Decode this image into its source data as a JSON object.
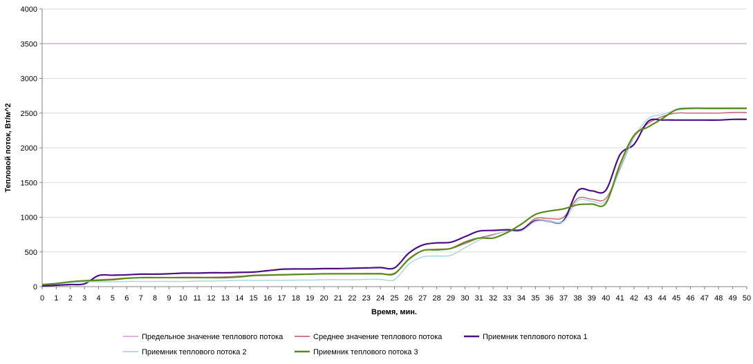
{
  "chart_data": {
    "type": "line",
    "title": "",
    "xlabel": "Время, мин.",
    "ylabel": "Тепловой поток, Вт/м^2",
    "xlim": [
      0,
      50
    ],
    "ylim": [
      0,
      4000
    ],
    "xticks": [
      "0",
      "1",
      "2",
      "3",
      "4",
      "5",
      "6",
      "7",
      "8",
      "9",
      "10",
      "11",
      "12",
      "13",
      "14",
      "15",
      "16",
      "17",
      "18",
      "19",
      "20",
      "21",
      "22",
      "23",
      "24",
      "25",
      "26",
      "27",
      "28",
      "29",
      "30",
      "31",
      "32",
      "33",
      "34",
      "35",
      "36",
      "37",
      "38",
      "39",
      "40",
      "41",
      "42",
      "43",
      "44",
      "45",
      "46",
      "47",
      "48",
      "49",
      "50"
    ],
    "yticks": [
      "0",
      "500",
      "1000",
      "1500",
      "2000",
      "2500",
      "3000",
      "3500",
      "4000"
    ],
    "grid": "horizontal",
    "legend_position": "bottom",
    "x": [
      0,
      1,
      2,
      3,
      4,
      5,
      6,
      7,
      8,
      9,
      10,
      11,
      12,
      13,
      14,
      15,
      16,
      17,
      18,
      19,
      20,
      21,
      22,
      23,
      24,
      25,
      26,
      27,
      28,
      29,
      30,
      31,
      32,
      33,
      34,
      35,
      36,
      37,
      38,
      39,
      40,
      41,
      42,
      43,
      44,
      45,
      46,
      47,
      48,
      49,
      50
    ],
    "series": [
      {
        "name": "Предельное значение теплового потока",
        "color": "#d6a8d6",
        "values": [
          3500,
          3500,
          3500,
          3500,
          3500,
          3500,
          3500,
          3500,
          3500,
          3500,
          3500,
          3500,
          3500,
          3500,
          3500,
          3500,
          3500,
          3500,
          3500,
          3500,
          3500,
          3500,
          3500,
          3500,
          3500,
          3500,
          3500,
          3500,
          3500,
          3500,
          3500,
          3500,
          3500,
          3500,
          3500,
          3500,
          3500,
          3500,
          3500,
          3500,
          3500,
          3500,
          3500,
          3500,
          3500,
          3500,
          3500,
          3500,
          3500,
          3500,
          3500
        ]
      },
      {
        "name": "Среднее значение теплового потока",
        "color": "#c8687e",
        "values": [
          30,
          40,
          65,
          85,
          100,
          110,
          125,
          130,
          130,
          130,
          135,
          135,
          135,
          140,
          150,
          165,
          170,
          175,
          180,
          180,
          185,
          185,
          185,
          190,
          190,
          180,
          400,
          520,
          540,
          550,
          620,
          700,
          750,
          800,
          820,
          980,
          980,
          1000,
          1270,
          1260,
          1270,
          1700,
          2150,
          2350,
          2450,
          2500,
          2500,
          2500,
          2500,
          2510,
          2510
        ]
      },
      {
        "name": "Приемник теплового потока 1",
        "color": "#4b0f82",
        "values": [
          10,
          20,
          30,
          40,
          160,
          165,
          170,
          180,
          180,
          185,
          195,
          195,
          200,
          200,
          205,
          210,
          230,
          250,
          255,
          255,
          260,
          260,
          265,
          270,
          275,
          270,
          480,
          600,
          630,
          640,
          720,
          800,
          810,
          820,
          820,
          950,
          940,
          950,
          1380,
          1380,
          1390,
          1900,
          2050,
          2380,
          2400,
          2400,
          2400,
          2400,
          2400,
          2410,
          2410
        ]
      },
      {
        "name": "Приемник теплового потока 2",
        "color": "#a8d8dc",
        "values": [
          30,
          40,
          60,
          70,
          70,
          70,
          75,
          75,
          75,
          75,
          75,
          80,
          80,
          85,
          90,
          90,
          90,
          90,
          95,
          95,
          100,
          100,
          100,
          105,
          105,
          100,
          320,
          430,
          440,
          450,
          560,
          670,
          740,
          800,
          800,
          940,
          940,
          940,
          1240,
          1230,
          1230,
          1680,
          2150,
          2420,
          2480,
          2540,
          2560,
          2560,
          2560,
          2560,
          2560
        ]
      },
      {
        "name": "Приемник теплового потока 3",
        "color": "#5a8a1e",
        "values": [
          30,
          45,
          70,
          85,
          90,
          100,
          120,
          130,
          130,
          130,
          130,
          130,
          130,
          130,
          140,
          160,
          165,
          170,
          175,
          180,
          185,
          185,
          185,
          185,
          185,
          190,
          390,
          520,
          530,
          550,
          640,
          700,
          700,
          780,
          900,
          1040,
          1090,
          1120,
          1180,
          1190,
          1200,
          1760,
          2180,
          2300,
          2420,
          2550,
          2570,
          2570,
          2570,
          2570,
          2570
        ]
      }
    ]
  }
}
